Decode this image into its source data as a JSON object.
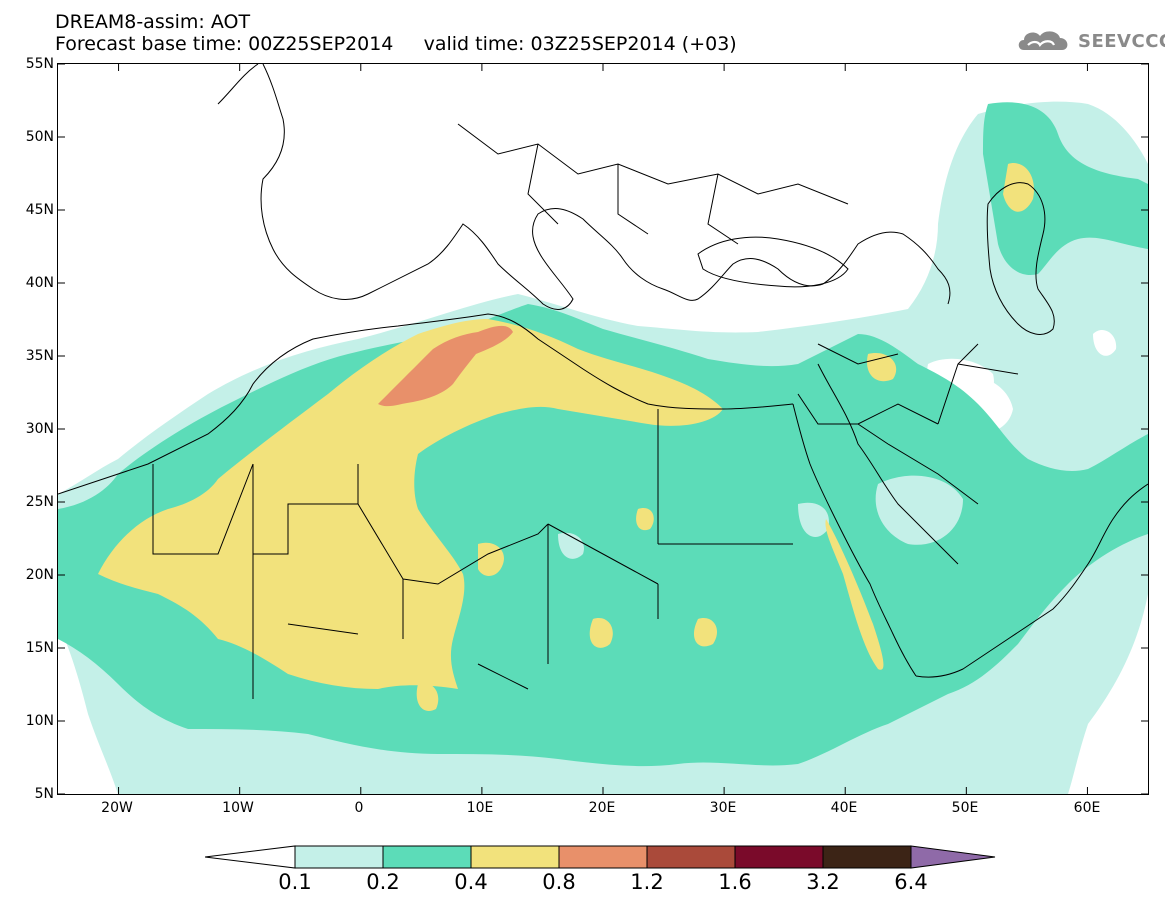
{
  "header": {
    "line1": "DREAM8-assim: AOT",
    "line2": "Forecast base time: 00Z25SEP2014     valid time: 03Z25SEP2014 (+03)"
  },
  "logo": {
    "text": "SEEVCCC",
    "icon": "cloud-logo-icon",
    "color": "#8a8a8a"
  },
  "map": {
    "lon_range": [
      -25,
      65
    ],
    "lat_range": [
      5,
      55
    ],
    "lat_ticks": [
      "55N",
      "50N",
      "45N",
      "40N",
      "35N",
      "30N",
      "25N",
      "20N",
      "15N",
      "10N",
      "5N"
    ],
    "lon_ticks": [
      "20W",
      "10W",
      "0",
      "10E",
      "20E",
      "30E",
      "40E",
      "50E",
      "60E"
    ],
    "tick_lons": [
      -20,
      -10,
      0,
      10,
      20,
      30,
      40,
      50,
      60
    ],
    "tick_lats": [
      55,
      50,
      45,
      40,
      35,
      30,
      25,
      20,
      15,
      10,
      5
    ]
  },
  "colorbar": {
    "labels": [
      "0.1",
      "0.2",
      "0.4",
      "0.8",
      "1.2",
      "1.6",
      "3.2",
      "6.4"
    ],
    "colors": [
      "#c4f0e8",
      "#5cdcb8",
      "#f2e27c",
      "#e8906a",
      "#aa4a3a",
      "#7a0a2a",
      "#3c2416",
      "#8f6aa8"
    ]
  }
}
